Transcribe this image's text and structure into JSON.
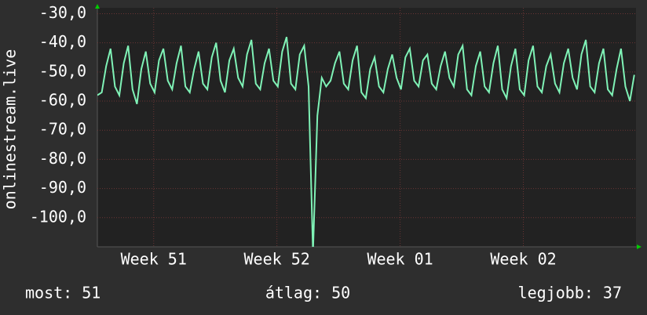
{
  "chart_data": {
    "type": "line",
    "y_label": "onlinestream.live",
    "x": [
      0,
      0.25,
      0.5,
      0.75,
      1,
      1.25,
      1.5,
      1.75,
      2,
      2.25,
      2.5,
      2.75,
      3,
      3.25,
      3.5,
      3.75,
      4,
      4.25,
      4.5,
      4.75,
      5,
      5.25,
      5.5,
      5.75,
      6,
      6.25,
      6.5,
      6.75,
      7,
      7.25,
      7.5,
      7.75,
      8,
      8.25,
      8.5,
      8.75,
      9,
      9.25,
      9.5,
      9.75,
      10,
      10.25,
      10.5,
      10.75,
      11,
      11.25,
      11.5,
      11.75,
      12,
      12.25,
      12.5,
      12.75,
      13,
      13.25,
      13.5,
      13.75,
      14,
      14.25,
      14.5,
      14.75,
      15,
      15.25,
      15.5,
      15.75,
      16,
      16.25,
      16.5,
      16.75,
      17,
      17.25,
      17.5,
      17.75,
      18,
      18.25,
      18.5,
      18.75,
      19,
      19.25,
      19.5,
      19.75,
      20,
      20.25,
      20.5,
      20.75,
      21,
      21.25,
      21.5,
      21.75,
      22,
      22.25,
      22.5,
      22.75,
      23,
      23.25,
      23.5,
      23.75,
      24,
      24.25,
      24.5,
      24.75,
      25,
      25.25,
      25.5,
      25.75,
      26,
      26.25,
      26.5,
      26.75,
      27,
      27.25,
      27.5,
      27.75,
      28,
      28.25,
      28.5,
      28.75,
      29,
      29.25,
      29.5,
      29.75,
      30,
      30.25,
      30.5
    ],
    "series": [
      {
        "color": "#7ff2b6",
        "values": [
          -58,
          -57,
          -48,
          -42,
          -55,
          -58,
          -47,
          -41,
          -56,
          -61,
          -49,
          -43,
          -54,
          -57,
          -46,
          -42,
          -53,
          -56,
          -47,
          -41,
          -55,
          -57,
          -49,
          -43,
          -54,
          -56,
          -45,
          -40,
          -53,
          -57,
          -46,
          -42,
          -52,
          -55,
          -44,
          -39,
          -54,
          -56,
          -47,
          -42,
          -53,
          -55,
          -43,
          -38,
          -54,
          -56,
          -44,
          -41,
          -55,
          -112,
          -65,
          -52,
          -55,
          -53,
          -47,
          -43,
          -54,
          -56,
          -46,
          -41,
          -57,
          -59,
          -49,
          -45,
          -55,
          -57,
          -49,
          -44,
          -52,
          -56,
          -45,
          -42,
          -53,
          -55,
          -46,
          -44,
          -54,
          -56,
          -48,
          -43,
          -52,
          -55,
          -44,
          -41,
          -56,
          -58,
          -48,
          -43,
          -55,
          -57,
          -47,
          -41,
          -56,
          -59,
          -48,
          -42,
          -56,
          -58,
          -46,
          -41,
          -55,
          -57,
          -48,
          -44,
          -54,
          -57,
          -47,
          -42,
          -52,
          -56,
          -44,
          -39,
          -55,
          -57,
          -47,
          -42,
          -56,
          -58,
          -49,
          -42,
          -55,
          -60,
          -51
        ]
      }
    ],
    "xlim": [
      0,
      30.6
    ],
    "xticks": [
      {
        "value": 3.2,
        "label": "Week 51"
      },
      {
        "value": 10.2,
        "label": "Week 52"
      },
      {
        "value": 17.2,
        "label": "Week 01"
      },
      {
        "value": 24.2,
        "label": "Week 02"
      }
    ],
    "ylim": [
      -110,
      -28
    ],
    "yticks": [
      {
        "value": -30,
        "label": "-30,0"
      },
      {
        "value": -40,
        "label": "-40,0"
      },
      {
        "value": -50,
        "label": "-50,0"
      },
      {
        "value": -60,
        "label": "-60,0"
      },
      {
        "value": -70,
        "label": "-70,0"
      },
      {
        "value": -80,
        "label": "-80,0"
      },
      {
        "value": -90,
        "label": "-90,0"
      },
      {
        "value": -100,
        "label": "-100,0"
      }
    ],
    "grid": true,
    "summary": [
      "most: 51",
      "átlag: 50",
      "legjobb: 37"
    ]
  }
}
